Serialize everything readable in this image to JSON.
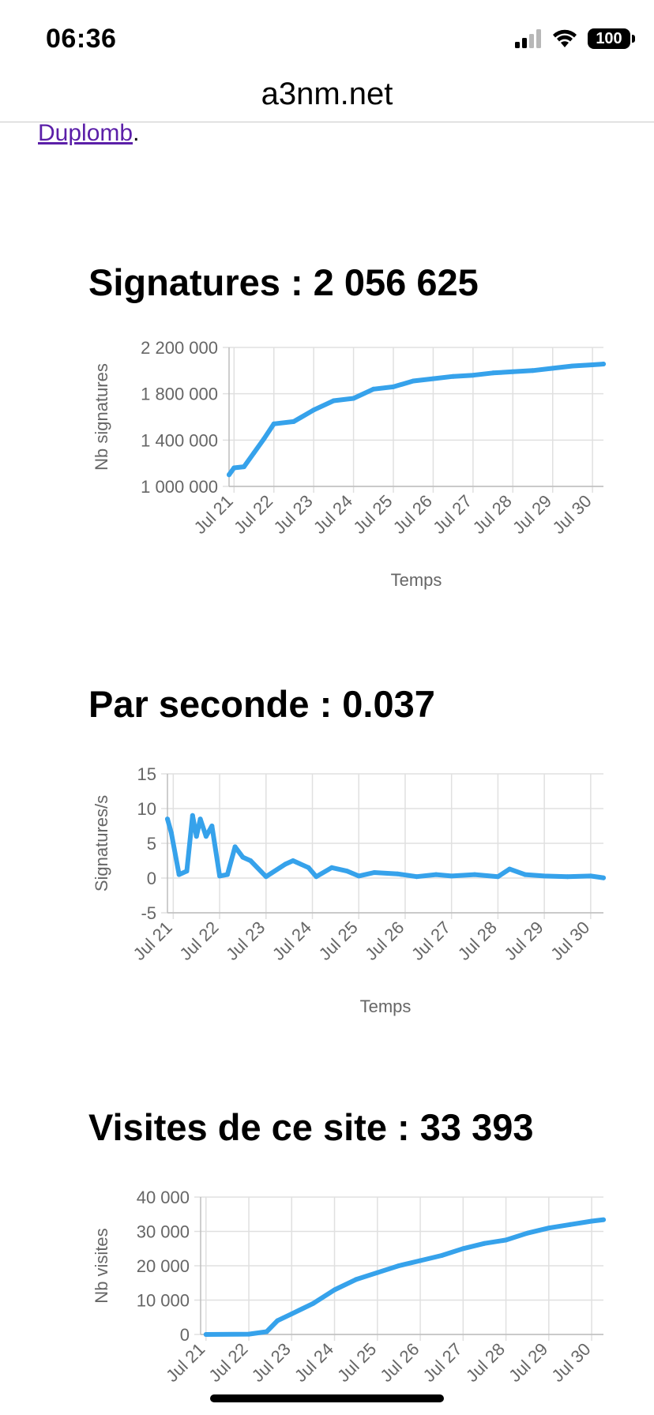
{
  "status_bar": {
    "time": "06:36",
    "battery": "100",
    "icons": [
      "cellular-signal-icon",
      "wifi-icon",
      "battery-icon"
    ]
  },
  "browser": {
    "address": "a3nm.net"
  },
  "page": {
    "link_text": "Duplomb",
    "link_suffix": "."
  },
  "colors": {
    "series": "#36a2eb",
    "grid": "#e0e0e0",
    "axis_text": "#666666",
    "link": "#5b1fa8"
  },
  "sections": [
    {
      "title": "Signatures : 2 056 625"
    },
    {
      "title": "Par seconde : 0.037"
    },
    {
      "title": "Visites de ce site : 33 393"
    }
  ],
  "chart_data": [
    {
      "type": "line",
      "title": "Signatures : 2 056 625",
      "xlabel": "Temps",
      "ylabel": "Nb signatures",
      "x_ticks": [
        "Jul 21",
        "Jul 22",
        "Jul 23",
        "Jul 24",
        "Jul 25",
        "Jul 26",
        "Jul 27",
        "Jul 28",
        "Jul 29",
        "Jul 30"
      ],
      "y_ticks": [
        "1 000 000",
        "1 400 000",
        "1 800 000",
        "2 200 000"
      ],
      "ylim": [
        1000000,
        2200000
      ],
      "xlim": [
        "2025-07-20T21:00",
        "2025-07-30T06:36"
      ],
      "grid": true,
      "series": [
        {
          "x": [
            "2025-07-20T21:00",
            "2025-07-21T00:00",
            "2025-07-21T06:00",
            "2025-07-21T12:00",
            "2025-07-21T18:00",
            "2025-07-22T00:00",
            "2025-07-22T12:00",
            "2025-07-23T00:00",
            "2025-07-23T12:00",
            "2025-07-24T00:00",
            "2025-07-24T12:00",
            "2025-07-25T00:00",
            "2025-07-25T12:00",
            "2025-07-26T00:00",
            "2025-07-26T12:00",
            "2025-07-27T00:00",
            "2025-07-27T12:00",
            "2025-07-28T00:00",
            "2025-07-28T12:00",
            "2025-07-29T00:00",
            "2025-07-29T12:00",
            "2025-07-30T00:00",
            "2025-07-30T06:36"
          ],
          "values": [
            1100000,
            1160000,
            1170000,
            1290000,
            1410000,
            1540000,
            1560000,
            1660000,
            1740000,
            1760000,
            1840000,
            1860000,
            1910000,
            1930000,
            1950000,
            1960000,
            1980000,
            1990000,
            2000000,
            2020000,
            2040000,
            2050000,
            2056625
          ]
        }
      ]
    },
    {
      "type": "line",
      "title": "Par seconde : 0.037",
      "xlabel": "Temps",
      "ylabel": "Signatures/s",
      "x_ticks": [
        "Jul 21",
        "Jul 22",
        "Jul 23",
        "Jul 24",
        "Jul 25",
        "Jul 26",
        "Jul 27",
        "Jul 28",
        "Jul 29",
        "Jul 30"
      ],
      "y_ticks": [
        "-5",
        "0",
        "5",
        "10",
        "15"
      ],
      "ylim": [
        -5,
        15
      ],
      "xlim": [
        "2025-07-20T21:00",
        "2025-07-30T06:36"
      ],
      "grid": true,
      "series": [
        {
          "x": [
            "2025-07-20T21:00",
            "2025-07-20T23:00",
            "2025-07-21T03:00",
            "2025-07-21T07:00",
            "2025-07-21T10:00",
            "2025-07-21T12:00",
            "2025-07-21T14:00",
            "2025-07-21T17:00",
            "2025-07-21T20:00",
            "2025-07-22T00:00",
            "2025-07-22T04:00",
            "2025-07-22T08:00",
            "2025-07-22T12:00",
            "2025-07-22T16:00",
            "2025-07-23T00:00",
            "2025-07-23T10:00",
            "2025-07-23T14:00",
            "2025-07-23T22:00",
            "2025-07-24T02:00",
            "2025-07-24T10:00",
            "2025-07-24T18:00",
            "2025-07-25T00:00",
            "2025-07-25T08:00",
            "2025-07-25T20:00",
            "2025-07-26T06:00",
            "2025-07-26T16:00",
            "2025-07-27T00:00",
            "2025-07-27T12:00",
            "2025-07-28T00:00",
            "2025-07-28T06:00",
            "2025-07-28T14:00",
            "2025-07-29T00:00",
            "2025-07-29T12:00",
            "2025-07-30T00:00",
            "2025-07-30T06:36"
          ],
          "values": [
            8.5,
            6.5,
            0.5,
            1.0,
            9.0,
            6.0,
            8.5,
            6.0,
            7.5,
            0.3,
            0.5,
            4.5,
            3.0,
            2.5,
            0.2,
            2.0,
            2.5,
            1.5,
            0.2,
            1.5,
            1.0,
            0.3,
            0.8,
            0.6,
            0.2,
            0.5,
            0.3,
            0.5,
            0.2,
            1.3,
            0.5,
            0.3,
            0.2,
            0.3,
            0.037
          ]
        }
      ]
    },
    {
      "type": "line",
      "title": "Visites de ce site : 33 393",
      "xlabel": "",
      "ylabel": "Nb visites",
      "x_ticks": [
        "Jul 21",
        "Jul 22",
        "Jul 23",
        "Jul 24",
        "Jul 25",
        "Jul 26",
        "Jul 27",
        "Jul 28",
        "Jul 29",
        "Jul 30"
      ],
      "y_ticks": [
        "0",
        "10 000",
        "20 000",
        "30 000",
        "40 000"
      ],
      "ylim": [
        0,
        40000
      ],
      "xlim": [
        "2025-07-20T21:00",
        "2025-07-30T06:36"
      ],
      "grid": true,
      "series": [
        {
          "x": [
            "2025-07-21T00:00",
            "2025-07-22T00:00",
            "2025-07-22T10:00",
            "2025-07-22T16:00",
            "2025-07-23T00:00",
            "2025-07-23T12:00",
            "2025-07-24T00:00",
            "2025-07-24T12:00",
            "2025-07-25T00:00",
            "2025-07-25T12:00",
            "2025-07-26T00:00",
            "2025-07-26T12:00",
            "2025-07-27T00:00",
            "2025-07-27T12:00",
            "2025-07-28T00:00",
            "2025-07-28T12:00",
            "2025-07-29T00:00",
            "2025-07-29T12:00",
            "2025-07-30T00:00",
            "2025-07-30T06:36"
          ],
          "values": [
            0,
            100,
            800,
            4000,
            6000,
            9000,
            13000,
            16000,
            18000,
            20000,
            21500,
            23000,
            25000,
            26500,
            27500,
            29500,
            31000,
            32000,
            33000,
            33393
          ]
        }
      ]
    }
  ]
}
